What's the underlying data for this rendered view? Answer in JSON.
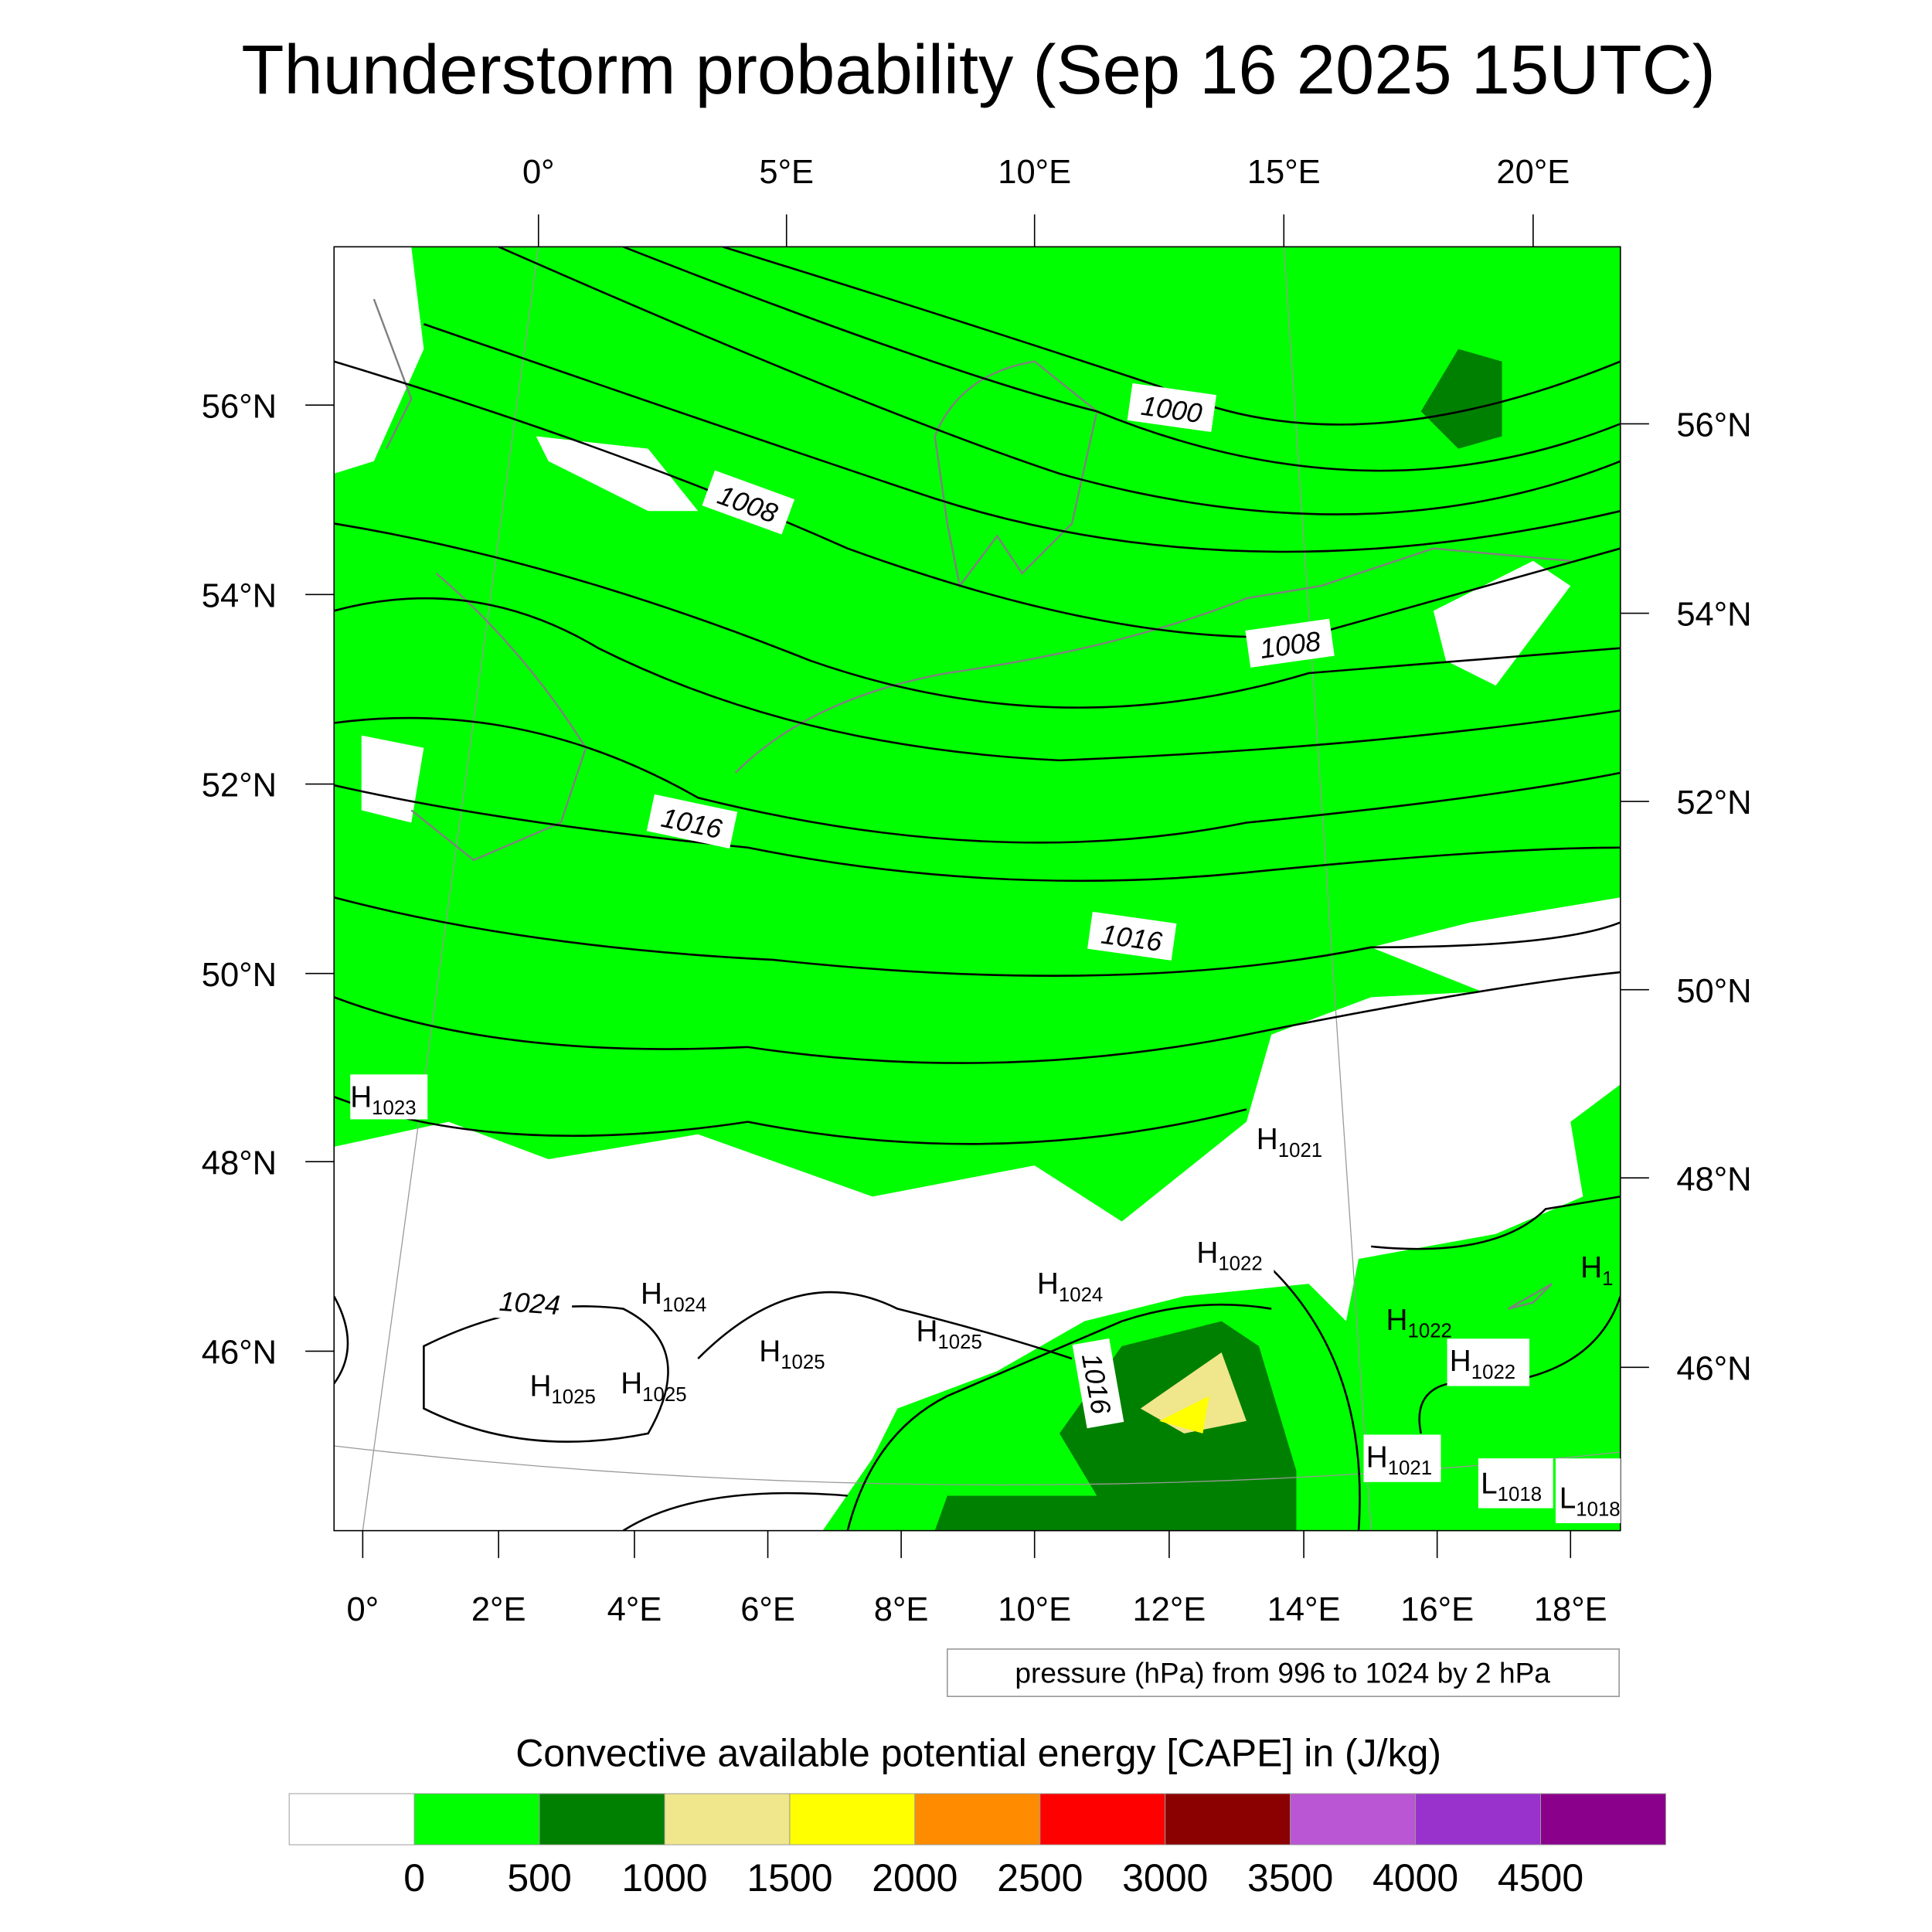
{
  "title": "Thunderstorm probability (Sep 16 2025 15UTC)",
  "top_lon_labels": [
    "0°",
    "5°E",
    "10°E",
    "15°E",
    "20°E"
  ],
  "bottom_lon_labels": [
    "0°",
    "2°E",
    "4°E",
    "6°E",
    "8°E",
    "10°E",
    "12°E",
    "14°E",
    "16°E",
    "18°E"
  ],
  "left_lat_labels": [
    "56°N",
    "54°N",
    "52°N",
    "50°N",
    "48°N",
    "46°N"
  ],
  "right_lat_labels": [
    "56°N",
    "54°N",
    "52°N",
    "50°N",
    "48°N",
    "46°N"
  ],
  "isobar_labels": [
    "1000",
    "1008",
    "1008",
    "1016",
    "1016",
    "1016",
    "1024"
  ],
  "pressure_centers": [
    {
      "type": "H",
      "value": "1023"
    },
    {
      "type": "H",
      "value": "1021"
    },
    {
      "type": "H",
      "value": "1022"
    },
    {
      "type": "H",
      "value": "1024"
    },
    {
      "type": "H",
      "value": "1024"
    },
    {
      "type": "H",
      "value": "1025"
    },
    {
      "type": "H",
      "value": "1025"
    },
    {
      "type": "H",
      "value": "1025"
    },
    {
      "type": "H",
      "value": "1025"
    },
    {
      "type": "H",
      "value": "1022"
    },
    {
      "type": "H",
      "value": "1022"
    },
    {
      "type": "H",
      "value": "1021"
    },
    {
      "type": "L",
      "value": "1018"
    },
    {
      "type": "L",
      "value": "1018"
    },
    {
      "type": "H",
      "value": "1"
    }
  ],
  "contour_info": "pressure (hPa) from 996 to 1024 by 2 hPa",
  "colorbar": {
    "title": "Convective available potential energy [CAPE] in (J/kg)",
    "colors": [
      "#ffffff",
      "#00ff00",
      "#008000",
      "#f0e68c",
      "#ffff00",
      "#ff8c00",
      "#ff0000",
      "#8b0000",
      "#ba55d3",
      "#9932cc",
      "#8b008b"
    ],
    "labels": [
      "0",
      "500",
      "1000",
      "1500",
      "2000",
      "2500",
      "3000",
      "3500",
      "4000",
      "4500"
    ]
  }
}
